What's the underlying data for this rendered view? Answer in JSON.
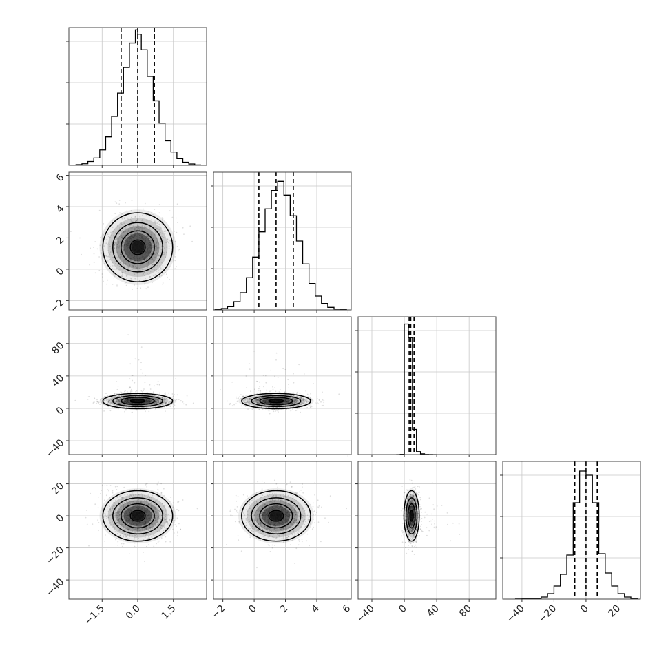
{
  "chart_data": {
    "type": "corner",
    "grid": true,
    "parameters": [
      {
        "range": [
          -2.9,
          2.9
        ],
        "ticks": [
          -1.5,
          0,
          1.5
        ],
        "tick_labels": [
          "−1.5",
          "0.0",
          "1.5"
        ],
        "quantiles": [
          -0.7,
          0.0,
          0.7
        ],
        "mean": 0.0,
        "sd": 0.7
      },
      {
        "range": [
          -2.6,
          6.2
        ],
        "ticks": [
          -2,
          0,
          2,
          4,
          6
        ],
        "tick_labels": [
          "−2",
          "0",
          "2",
          "4",
          "6"
        ],
        "quantiles": [
          0.3,
          1.4,
          2.5
        ],
        "mean": 1.4,
        "sd": 1.05
      },
      {
        "range": [
          -57,
          113
        ],
        "ticks": [
          -40,
          0,
          40,
          80
        ],
        "tick_labels": [
          "−40",
          "0",
          "40",
          "80"
        ],
        "quantiles": [
          6,
          8,
          12
        ],
        "mean": 9,
        "sd": 4.5
      },
      {
        "range": [
          -52,
          34
        ],
        "ticks": [
          -40,
          -20,
          0,
          20
        ],
        "tick_labels": [
          "−40",
          "−20",
          "0",
          "20"
        ],
        "quantiles": [
          -7,
          0,
          7
        ],
        "mean": 0,
        "sd": 7.5
      }
    ],
    "histograms": [
      {
        "bins": [
          -2.85,
          -2.6,
          -2.35,
          -2.1,
          -1.85,
          -1.6,
          -1.35,
          -1.1,
          -0.85,
          -0.6,
          -0.35,
          -0.1,
          0.0,
          0.15,
          0.4,
          0.65,
          0.9,
          1.15,
          1.4,
          1.65,
          1.9,
          2.15,
          2.4,
          2.65
        ],
        "counts": [
          1,
          3,
          7,
          17,
          33,
          69,
          128,
          220,
          325,
          440,
          550,
          610,
          590,
          520,
          400,
          290,
          190,
          110,
          60,
          30,
          14,
          6,
          2
        ],
        "ylim": [
          0,
          620
        ]
      },
      {
        "bins": [
          -2.5,
          -2.1,
          -1.7,
          -1.3,
          -0.9,
          -0.5,
          -0.1,
          0.3,
          0.7,
          1.1,
          1.5,
          1.9,
          2.3,
          2.7,
          3.1,
          3.5,
          3.9,
          4.3,
          4.7,
          5.1,
          5.5,
          5.9
        ],
        "counts": [
          2,
          6,
          14,
          36,
          75,
          140,
          230,
          340,
          440,
          520,
          560,
          500,
          410,
          300,
          200,
          115,
          60,
          28,
          11,
          4,
          1
        ],
        "ylim": [
          0,
          600
        ]
      },
      {
        "bins": [
          -10,
          -5,
          0,
          5,
          10,
          15,
          20,
          25,
          30,
          35,
          40
        ],
        "counts": [
          0,
          5,
          2700,
          2420,
          520,
          60,
          15,
          4,
          1,
          0
        ],
        "ylim": [
          0,
          2850
        ]
      },
      {
        "bins": [
          -44,
          -40,
          -36,
          -32,
          -28,
          -24,
          -20,
          -16,
          -12,
          -8,
          -4,
          0,
          4,
          8,
          12,
          16,
          20,
          24,
          28,
          32
        ],
        "counts": [
          1,
          2,
          3,
          6,
          15,
          40,
          95,
          180,
          320,
          700,
          930,
          900,
          700,
          330,
          190,
          95,
          40,
          15,
          5
        ],
        "ylim": [
          0,
          1000
        ]
      }
    ]
  }
}
